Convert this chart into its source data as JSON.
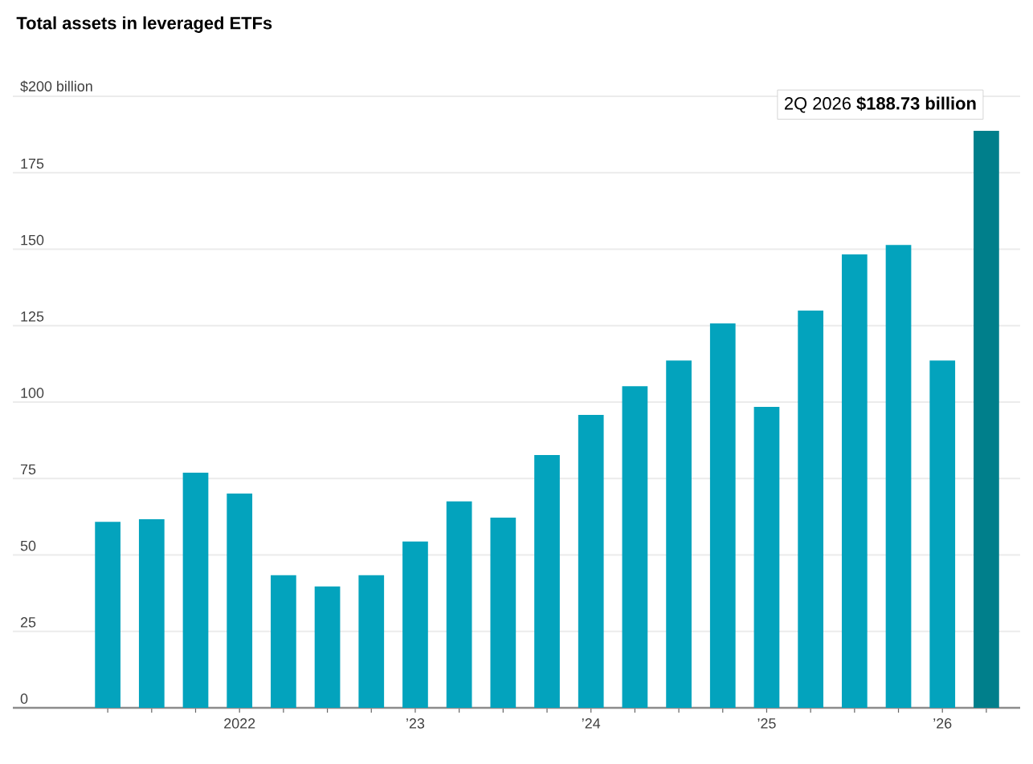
{
  "chart_data": {
    "type": "bar",
    "title": "Total assets in leveraged ETFs",
    "categories": [
      null,
      null,
      null,
      "2022",
      null,
      null,
      null,
      "’23",
      null,
      null,
      null,
      "’24",
      null,
      null,
      null,
      "’25",
      null,
      null,
      null,
      "’26",
      null
    ],
    "values": [
      60.8,
      61.7,
      76.9,
      70.1,
      43.4,
      39.7,
      43.4,
      54.4,
      67.5,
      62.2,
      82.7,
      95.8,
      105.2,
      113.6,
      125.7,
      98.4,
      129.9,
      148.3,
      151.4,
      113.6,
      188.73
    ],
    "colors": [
      "#03a3bd",
      "#03a3bd",
      "#03a3bd",
      "#03a3bd",
      "#03a3bd",
      "#03a3bd",
      "#03a3bd",
      "#03a3bd",
      "#03a3bd",
      "#03a3bd",
      "#03a3bd",
      "#03a3bd",
      "#03a3bd",
      "#03a3bd",
      "#03a3bd",
      "#03a3bd",
      "#03a3bd",
      "#03a3bd",
      "#03a3bd",
      "#03a3bd",
      "#007f8b"
    ],
    "ylim": [
      0,
      200
    ],
    "yticks": [
      0,
      25,
      50,
      75,
      100,
      125,
      150,
      175,
      {
        "value": 200,
        "label": "$200 billion"
      }
    ],
    "grid": "y",
    "annotations": [
      "2Q 2026 **$188.73 billion**"
    ]
  }
}
